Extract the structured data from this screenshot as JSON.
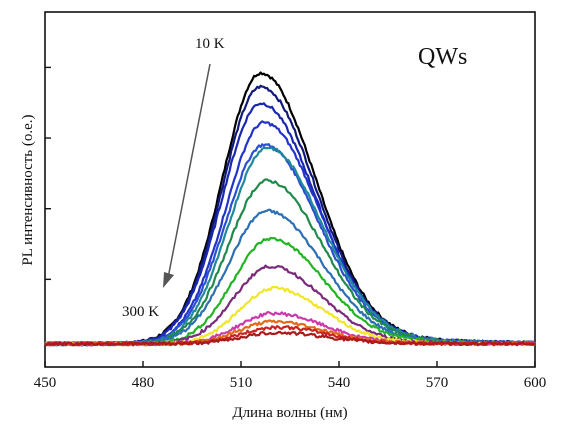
{
  "chart_data": {
    "type": "line",
    "title": "",
    "xlabel": "Длина волны (нм)",
    "ylabel": "PL интенсивность (о.е.)",
    "xlim": [
      450,
      600
    ],
    "ylim": [
      0,
      1
    ],
    "x_ticks": [
      450,
      480,
      510,
      540,
      570,
      600
    ],
    "x_tick_labels": [
      "450",
      "480",
      "510",
      "540",
      "570",
      "600"
    ],
    "y_tick_labels_shown": false,
    "grid": false,
    "legend": "none",
    "inset_label": "QWs",
    "annotations": {
      "low_temp": "10 K",
      "high_temp": "300 K",
      "arrow_direction": "decreasing intensity with increasing temperature"
    },
    "series_shape": {
      "description": "PL spectra, peak near 517-522 nm",
      "baseline": 0.02
    },
    "series": [
      {
        "color": "#000000",
        "peak_x": 516,
        "peak_y": 1.0,
        "fwhm": 28
      },
      {
        "color": "#111a7a",
        "peak_x": 516,
        "peak_y": 0.95,
        "fwhm": 28
      },
      {
        "color": "#1a28b0",
        "peak_x": 516,
        "peak_y": 0.89,
        "fwhm": 28
      },
      {
        "color": "#2233cc",
        "peak_x": 517,
        "peak_y": 0.82,
        "fwhm": 28
      },
      {
        "color": "#2a4fd0",
        "peak_x": 517,
        "peak_y": 0.74,
        "fwhm": 28
      },
      {
        "color": "#208a9a",
        "peak_x": 518,
        "peak_y": 0.73,
        "fwhm": 28
      },
      {
        "color": "#1f8a4a",
        "peak_x": 518,
        "peak_y": 0.61,
        "fwhm": 28
      },
      {
        "color": "#2b6fb4",
        "peak_x": 518,
        "peak_y": 0.5,
        "fwhm": 28
      },
      {
        "color": "#22b422",
        "peak_x": 519,
        "peak_y": 0.4,
        "fwhm": 27
      },
      {
        "color": "#7a2a7a",
        "peak_x": 519,
        "peak_y": 0.3,
        "fwhm": 26
      },
      {
        "color": "#f0e62a",
        "peak_x": 520,
        "peak_y": 0.22,
        "fwhm": 25
      },
      {
        "color": "#cc3aaa",
        "peak_x": 520,
        "peak_y": 0.13,
        "fwhm": 25
      },
      {
        "color": "#e26a1a",
        "peak_x": 520,
        "peak_y": 0.1,
        "fwhm": 25
      },
      {
        "color": "#cc2222",
        "peak_x": 521,
        "peak_y": 0.08,
        "fwhm": 25
      },
      {
        "color": "#aa1a1a",
        "peak_x": 521,
        "peak_y": 0.06,
        "fwhm": 25
      }
    ]
  }
}
